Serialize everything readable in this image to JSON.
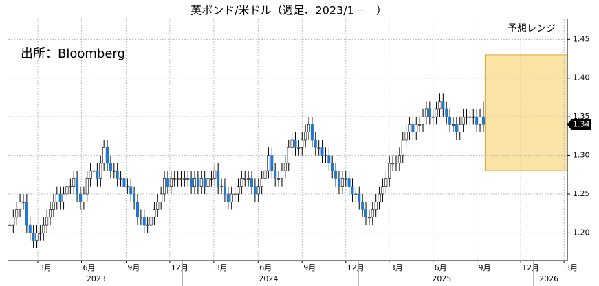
{
  "chart_data": {
    "type": "candlestick",
    "title": "英ポンド/米ドル（週足、2023/1－　）",
    "source": "出所：Bloomberg",
    "open": [
      1.21,
      1.21,
      1.22,
      1.23,
      1.24,
      1.24,
      1.21,
      1.2,
      1.19,
      1.2,
      1.2,
      1.21,
      1.22,
      1.23,
      1.24,
      1.25,
      1.24,
      1.25,
      1.26,
      1.26,
      1.27,
      1.25,
      1.24,
      1.25,
      1.27,
      1.28,
      1.28,
      1.27,
      1.29,
      1.31,
      1.29,
      1.28,
      1.28,
      1.27,
      1.27,
      1.26,
      1.26,
      1.25,
      1.24,
      1.22,
      1.22,
      1.21,
      1.21,
      1.22,
      1.23,
      1.24,
      1.25,
      1.27,
      1.26,
      1.27,
      1.27,
      1.27,
      1.27,
      1.27,
      1.27,
      1.26,
      1.27,
      1.26,
      1.27,
      1.26,
      1.27,
      1.27,
      1.28,
      1.26,
      1.26,
      1.25,
      1.24,
      1.25,
      1.25,
      1.26,
      1.27,
      1.27,
      1.27,
      1.26,
      1.25,
      1.26,
      1.27,
      1.28,
      1.3,
      1.28,
      1.27,
      1.27,
      1.28,
      1.29,
      1.31,
      1.32,
      1.31,
      1.31,
      1.32,
      1.33,
      1.34,
      1.32,
      1.31,
      1.31,
      1.3,
      1.3,
      1.29,
      1.28,
      1.27,
      1.26,
      1.27,
      1.27,
      1.26,
      1.25,
      1.25,
      1.24,
      1.23,
      1.22,
      1.22,
      1.23,
      1.24,
      1.25,
      1.26,
      1.27,
      1.29,
      1.29,
      1.29,
      1.3,
      1.32,
      1.33,
      1.34,
      1.33,
      1.34,
      1.34,
      1.35,
      1.36,
      1.35,
      1.35,
      1.36,
      1.37,
      1.36,
      1.35,
      1.34,
      1.34,
      1.33,
      1.34,
      1.35,
      1.35,
      1.35,
      1.35,
      1.34,
      1.35
    ],
    "high": [
      1.22,
      1.23,
      1.24,
      1.25,
      1.25,
      1.25,
      1.22,
      1.21,
      1.21,
      1.21,
      1.22,
      1.23,
      1.24,
      1.25,
      1.26,
      1.26,
      1.26,
      1.27,
      1.27,
      1.28,
      1.28,
      1.26,
      1.26,
      1.28,
      1.29,
      1.29,
      1.29,
      1.3,
      1.32,
      1.32,
      1.3,
      1.29,
      1.29,
      1.28,
      1.28,
      1.27,
      1.27,
      1.26,
      1.25,
      1.23,
      1.23,
      1.22,
      1.23,
      1.24,
      1.25,
      1.26,
      1.28,
      1.28,
      1.28,
      1.28,
      1.28,
      1.28,
      1.28,
      1.28,
      1.28,
      1.28,
      1.28,
      1.28,
      1.28,
      1.28,
      1.28,
      1.29,
      1.29,
      1.27,
      1.27,
      1.26,
      1.26,
      1.26,
      1.27,
      1.28,
      1.28,
      1.28,
      1.28,
      1.27,
      1.27,
      1.28,
      1.29,
      1.31,
      1.31,
      1.29,
      1.28,
      1.29,
      1.3,
      1.32,
      1.33,
      1.33,
      1.32,
      1.33,
      1.34,
      1.35,
      1.35,
      1.33,
      1.32,
      1.32,
      1.31,
      1.31,
      1.3,
      1.29,
      1.28,
      1.28,
      1.28,
      1.28,
      1.27,
      1.26,
      1.26,
      1.25,
      1.24,
      1.23,
      1.24,
      1.25,
      1.26,
      1.27,
      1.28,
      1.3,
      1.3,
      1.3,
      1.31,
      1.33,
      1.34,
      1.35,
      1.35,
      1.35,
      1.35,
      1.36,
      1.37,
      1.37,
      1.36,
      1.37,
      1.38,
      1.38,
      1.37,
      1.36,
      1.35,
      1.35,
      1.35,
      1.36,
      1.36,
      1.36,
      1.36,
      1.36,
      1.36,
      1.37
    ],
    "low": [
      1.2,
      1.2,
      1.21,
      1.22,
      1.23,
      1.2,
      1.19,
      1.18,
      1.18,
      1.19,
      1.19,
      1.2,
      1.21,
      1.22,
      1.23,
      1.23,
      1.23,
      1.24,
      1.25,
      1.25,
      1.24,
      1.23,
      1.23,
      1.24,
      1.26,
      1.27,
      1.26,
      1.26,
      1.28,
      1.28,
      1.27,
      1.27,
      1.26,
      1.26,
      1.25,
      1.25,
      1.24,
      1.23,
      1.21,
      1.21,
      1.2,
      1.2,
      1.2,
      1.21,
      1.22,
      1.23,
      1.24,
      1.25,
      1.25,
      1.26,
      1.26,
      1.26,
      1.26,
      1.26,
      1.25,
      1.25,
      1.25,
      1.25,
      1.25,
      1.25,
      1.26,
      1.26,
      1.25,
      1.25,
      1.24,
      1.23,
      1.23,
      1.24,
      1.24,
      1.25,
      1.26,
      1.26,
      1.25,
      1.24,
      1.24,
      1.25,
      1.26,
      1.27,
      1.27,
      1.26,
      1.26,
      1.26,
      1.27,
      1.28,
      1.3,
      1.3,
      1.3,
      1.3,
      1.31,
      1.32,
      1.31,
      1.3,
      1.3,
      1.29,
      1.29,
      1.28,
      1.27,
      1.26,
      1.25,
      1.25,
      1.26,
      1.25,
      1.24,
      1.24,
      1.23,
      1.22,
      1.21,
      1.21,
      1.21,
      1.22,
      1.23,
      1.24,
      1.25,
      1.26,
      1.28,
      1.28,
      1.28,
      1.29,
      1.31,
      1.32,
      1.32,
      1.32,
      1.33,
      1.33,
      1.34,
      1.34,
      1.34,
      1.34,
      1.35,
      1.35,
      1.34,
      1.33,
      1.33,
      1.32,
      1.32,
      1.33,
      1.34,
      1.34,
      1.34,
      1.33,
      1.33,
      1.33
    ],
    "close": [
      1.21,
      1.22,
      1.23,
      1.24,
      1.24,
      1.21,
      1.2,
      1.19,
      1.2,
      1.2,
      1.21,
      1.22,
      1.23,
      1.24,
      1.25,
      1.24,
      1.25,
      1.26,
      1.26,
      1.27,
      1.25,
      1.24,
      1.25,
      1.27,
      1.28,
      1.28,
      1.27,
      1.29,
      1.31,
      1.29,
      1.28,
      1.28,
      1.27,
      1.27,
      1.26,
      1.26,
      1.25,
      1.24,
      1.22,
      1.22,
      1.21,
      1.21,
      1.22,
      1.23,
      1.24,
      1.25,
      1.27,
      1.26,
      1.27,
      1.27,
      1.27,
      1.27,
      1.27,
      1.27,
      1.26,
      1.27,
      1.26,
      1.27,
      1.26,
      1.27,
      1.27,
      1.28,
      1.26,
      1.26,
      1.25,
      1.24,
      1.25,
      1.25,
      1.26,
      1.27,
      1.27,
      1.27,
      1.26,
      1.25,
      1.26,
      1.27,
      1.28,
      1.3,
      1.28,
      1.27,
      1.27,
      1.28,
      1.29,
      1.31,
      1.32,
      1.31,
      1.31,
      1.32,
      1.33,
      1.34,
      1.32,
      1.31,
      1.31,
      1.3,
      1.3,
      1.29,
      1.28,
      1.27,
      1.26,
      1.27,
      1.27,
      1.26,
      1.25,
      1.25,
      1.24,
      1.23,
      1.22,
      1.22,
      1.23,
      1.24,
      1.25,
      1.26,
      1.27,
      1.29,
      1.29,
      1.29,
      1.3,
      1.32,
      1.33,
      1.34,
      1.33,
      1.34,
      1.34,
      1.35,
      1.36,
      1.35,
      1.35,
      1.36,
      1.37,
      1.36,
      1.35,
      1.34,
      1.34,
      1.33,
      1.34,
      1.35,
      1.35,
      1.35,
      1.35,
      1.34,
      1.35,
      1.34
    ],
    "up_color": "#ffffff",
    "down_color": "#1e78d2",
    "last_value": 1.34,
    "forecast": {
      "label": "予想レンジ",
      "low": 1.28,
      "high": 1.43,
      "color": "#fbe3a6"
    },
    "xlim": [
      -0.5,
      166
    ],
    "xticks": [
      {
        "value": 8.3,
        "label": "3月"
      },
      {
        "value": 21.3,
        "label": "6月"
      },
      {
        "value": 34.6,
        "label": "9月"
      },
      {
        "value": 47.6,
        "label": "12月"
      },
      {
        "value": 60.7,
        "label": "3月"
      },
      {
        "value": 73.9,
        "label": "6月"
      },
      {
        "value": 87.0,
        "label": "9月"
      },
      {
        "value": 100.0,
        "label": "12月"
      },
      {
        "value": 112.9,
        "label": "3月"
      },
      {
        "value": 126.0,
        "label": "6月"
      },
      {
        "value": 139.1,
        "label": "9月"
      },
      {
        "value": 152.1,
        "label": "12月"
      },
      {
        "value": 165.0,
        "label": "3月"
      }
    ],
    "year_ticks": [
      {
        "value": 25.7,
        "label": "2023"
      },
      {
        "value": 77.0,
        "label": "2024"
      },
      {
        "value": 128.6,
        "label": "2025"
      },
      {
        "value": 160.5,
        "label": "2026"
      }
    ],
    "ylim": [
      1.164,
      1.476
    ],
    "yticks": [
      {
        "value": 1.2,
        "label": "1.20"
      },
      1.25,
      {
        "value": 1.3,
        "label": "1.30"
      },
      1.35,
      {
        "value": 1.4,
        "label": "1.40"
      },
      1.45
    ],
    "grid": true
  }
}
